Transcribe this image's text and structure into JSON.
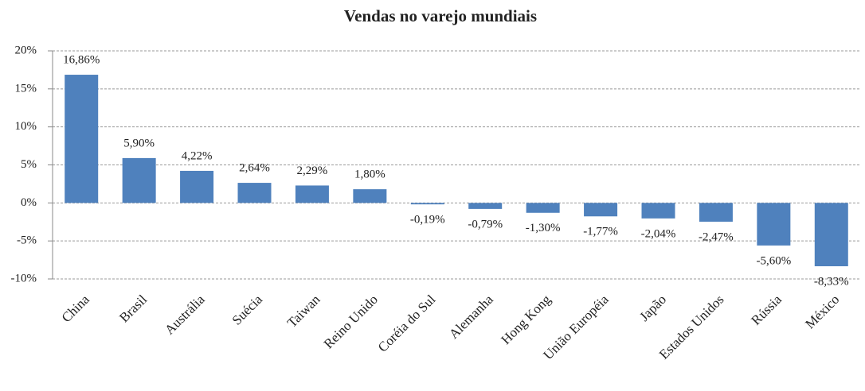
{
  "chart_data": {
    "type": "bar",
    "title": "Vendas no varejo mundiais",
    "categories": [
      "China",
      "Brasil",
      "Austrália",
      "Suécia",
      "Taiwan",
      "Reino Unido",
      "Coréia do Sul",
      "Alemanha",
      "Hong Kong",
      "União Européia",
      "Japão",
      "Estados Unidos",
      "Rússia",
      "México"
    ],
    "values": [
      16.86,
      5.9,
      4.22,
      2.64,
      2.29,
      1.8,
      -0.19,
      -0.79,
      -1.3,
      -1.77,
      -2.04,
      -2.47,
      -5.6,
      -8.33
    ],
    "value_labels": [
      "16,86%",
      "5,90%",
      "4,22%",
      "2,64%",
      "2,29%",
      "1,80%",
      "-0,19%",
      "-0,79%",
      "-1,30%",
      "-1,77%",
      "-2,04%",
      "-2,47%",
      "-5,60%",
      "-8,33%"
    ],
    "color": "#4f81bd",
    "ylim": [
      -10,
      20
    ],
    "yticks": [
      {
        "value": -10,
        "label": "-10%"
      },
      {
        "value": -5,
        "label": "-5%"
      },
      {
        "value": 0,
        "label": "0%"
      },
      {
        "value": 5,
        "label": "5%"
      },
      {
        "value": 10,
        "label": "10%"
      },
      {
        "value": 15,
        "label": "15%"
      },
      {
        "value": 20,
        "label": "20%"
      }
    ],
    "grid": true
  }
}
